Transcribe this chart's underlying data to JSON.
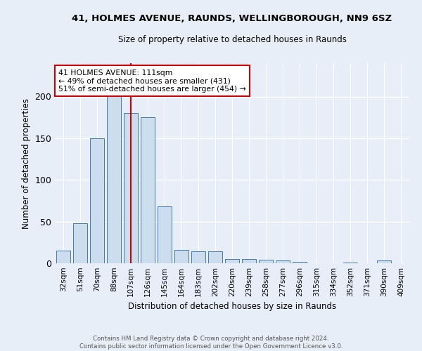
{
  "title1": "41, HOLMES AVENUE, RAUNDS, WELLINGBOROUGH, NN9 6SZ",
  "title2": "Size of property relative to detached houses in Raunds",
  "xlabel": "Distribution of detached houses by size in Raunds",
  "ylabel": "Number of detached properties",
  "categories": [
    "32sqm",
    "51sqm",
    "70sqm",
    "88sqm",
    "107sqm",
    "126sqm",
    "145sqm",
    "164sqm",
    "183sqm",
    "202sqm",
    "220sqm",
    "239sqm",
    "258sqm",
    "277sqm",
    "296sqm",
    "315sqm",
    "334sqm",
    "352sqm",
    "371sqm",
    "390sqm",
    "409sqm"
  ],
  "values": [
    15,
    48,
    150,
    205,
    180,
    175,
    68,
    16,
    14,
    14,
    5,
    5,
    4,
    3,
    2,
    0,
    0,
    1,
    0,
    3,
    0
  ],
  "bar_color": "#ccdded",
  "bar_edge_color": "#4477aa",
  "annotation_text_line1": "41 HOLMES AVENUE: 111sqm",
  "annotation_text_line2": "← 49% of detached houses are smaller (431)",
  "annotation_text_line3": "51% of semi-detached houses are larger (454) →",
  "red_line_bin_index": 4,
  "footnote1": "Contains HM Land Registry data © Crown copyright and database right 2024.",
  "footnote2": "Contains public sector information licensed under the Open Government Licence v3.0.",
  "ylim": [
    0,
    240
  ],
  "background_color": "#e8eef8",
  "grid_color": "#ffffff",
  "annotation_box_color": "#ffffff",
  "annotation_box_edge": "#cc0000",
  "red_line_color": "#cc0000"
}
